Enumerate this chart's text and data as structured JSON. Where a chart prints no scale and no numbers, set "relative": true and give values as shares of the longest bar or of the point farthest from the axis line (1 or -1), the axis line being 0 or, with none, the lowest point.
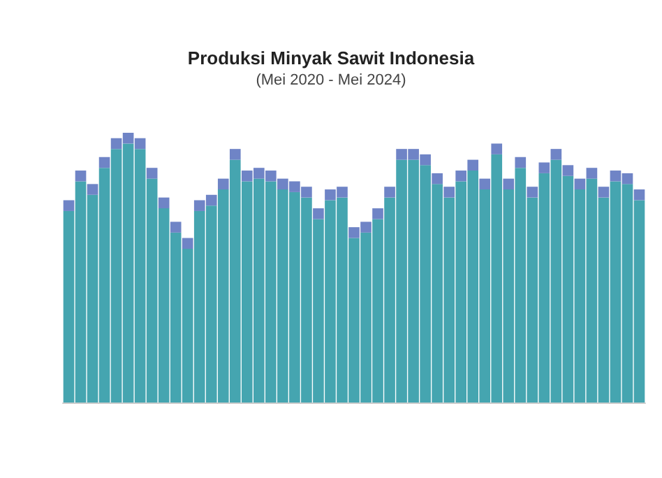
{
  "chart_data": {
    "type": "bar",
    "title": "Produksi Minyak Sawit Indonesia",
    "subtitle": "(Mei 2020 - Mei 2024)",
    "relative": true,
    "stacked": true,
    "categories": [
      null,
      null,
      null,
      null,
      null,
      null,
      null,
      null,
      null,
      null,
      null,
      null,
      null,
      null,
      null,
      null,
      null,
      null,
      null,
      null,
      null,
      null,
      null,
      null,
      null,
      null,
      null,
      null,
      null,
      null,
      null,
      null,
      null,
      null,
      null,
      null,
      null,
      null,
      null,
      null,
      null,
      null,
      null,
      null,
      null,
      null,
      null,
      null,
      null
    ],
    "series": [
      {
        "color": "#45a5b0",
        "values": [
          0.71,
          0.82,
          0.77,
          0.87,
          0.94,
          0.96,
          0.94,
          0.83,
          0.72,
          0.63,
          0.57,
          0.71,
          0.73,
          0.79,
          0.9,
          0.82,
          0.83,
          0.82,
          0.79,
          0.78,
          0.76,
          0.68,
          0.75,
          0.76,
          0.61,
          0.63,
          0.68,
          0.76,
          0.9,
          0.9,
          0.88,
          0.81,
          0.76,
          0.82,
          0.86,
          0.79,
          0.92,
          0.79,
          0.87,
          0.76,
          0.85,
          0.9,
          0.84,
          0.79,
          0.83,
          0.76,
          0.82,
          0.81,
          0.75
        ]
      },
      {
        "color": "#6f84c6",
        "values": [
          0.04,
          0.04,
          0.04,
          0.04,
          0.04,
          0.04,
          0.04,
          0.04,
          0.04,
          0.04,
          0.04,
          0.04,
          0.04,
          0.04,
          0.04,
          0.04,
          0.04,
          0.04,
          0.04,
          0.04,
          0.04,
          0.04,
          0.04,
          0.04,
          0.04,
          0.04,
          0.04,
          0.04,
          0.04,
          0.04,
          0.04,
          0.04,
          0.04,
          0.04,
          0.04,
          0.04,
          0.04,
          0.04,
          0.04,
          0.04,
          0.04,
          0.04,
          0.04,
          0.04,
          0.04,
          0.04,
          0.04,
          0.04,
          0.04
        ]
      }
    ]
  }
}
